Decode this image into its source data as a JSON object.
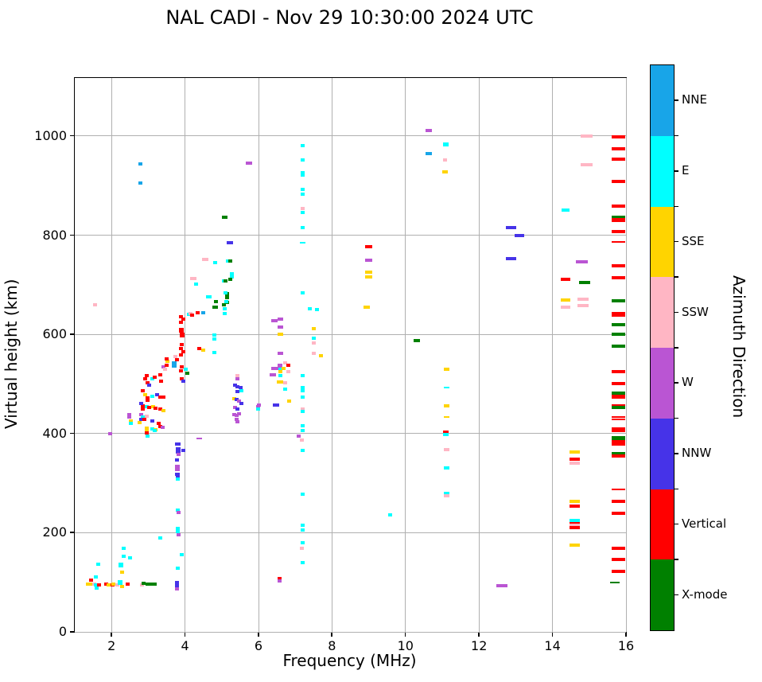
{
  "title": "NAL CADI - Nov 29 10:30:00 2024 UTC",
  "chart_data": {
    "type": "scatter",
    "title": "NAL CADI - Nov 29 10:30:00 2024 UTC",
    "xlabel": "Frequency (MHz)",
    "ylabel": "Virtual height (km)",
    "xlim": [
      1,
      16
    ],
    "ylim": [
      0,
      1117
    ],
    "xticks": [
      2,
      4,
      6,
      8,
      10,
      12,
      14,
      16
    ],
    "yticks": [
      0,
      200,
      400,
      600,
      800,
      1000
    ],
    "grid": true,
    "grid_color": "#b0b0b0",
    "legend_position": "right-colorbar",
    "colorbar": {
      "label": "Azimuth Direction",
      "categories": [
        {
          "name": "NNE",
          "color": "#18a5e8"
        },
        {
          "name": "E",
          "color": "#00ffff"
        },
        {
          "name": "SSE",
          "color": "#ffd400"
        },
        {
          "name": "SSW",
          "color": "#ffb6c4"
        },
        {
          "name": "W",
          "color": "#ba55d3"
        },
        {
          "name": "NNW",
          "color": "#4633e8"
        },
        {
          "name": "Vertical",
          "color": "#ff0000"
        },
        {
          "name": "X-mode",
          "color": "#008000"
        }
      ]
    },
    "point_format": "[freq_MHz, height_km, category_index, width_px?, height_px?]",
    "points": [
      [
        1.42,
        96,
        2,
        10
      ],
      [
        1.45,
        104,
        6
      ],
      [
        1.53,
        96,
        3
      ],
      [
        1.58,
        111,
        1
      ],
      [
        1.58,
        94,
        1
      ],
      [
        1.6,
        88,
        1
      ],
      [
        1.64,
        137,
        1
      ],
      [
        1.65,
        95,
        6
      ],
      [
        1.85,
        96,
        6
      ],
      [
        1.95,
        95,
        2,
        8
      ],
      [
        2.02,
        95,
        6
      ],
      [
        2.05,
        97,
        2
      ],
      [
        2.16,
        94,
        3
      ],
      [
        2.23,
        99,
        1,
        6,
        6
      ],
      [
        2.26,
        135,
        1,
        6,
        6
      ],
      [
        2.28,
        120,
        2
      ],
      [
        2.28,
        91,
        2
      ],
      [
        2.33,
        168,
        1
      ],
      [
        2.33,
        153,
        1
      ],
      [
        2.43,
        96,
        6
      ],
      [
        2.5,
        150,
        1
      ],
      [
        2.83,
        94,
        3
      ],
      [
        2.87,
        98,
        7
      ],
      [
        3.0,
        97,
        7,
        7
      ],
      [
        3.12,
        97,
        7,
        7
      ],
      [
        3.17,
        97,
        7
      ],
      [
        3.8,
        129,
        1
      ],
      [
        3.92,
        155,
        1
      ],
      [
        3.78,
        95,
        5,
        5,
        10
      ],
      [
        3.78,
        87,
        4
      ],
      [
        3.33,
        189,
        1
      ],
      [
        6.57,
        107,
        6
      ],
      [
        6.57,
        103,
        4
      ],
      [
        12.62,
        93,
        4,
        14
      ],
      [
        15.7,
        100,
        7,
        12,
        2
      ],
      [
        7.2,
        981,
        1
      ],
      [
        7.2,
        951,
        1
      ],
      [
        7.2,
        926,
        1
      ],
      [
        7.2,
        922,
        1
      ],
      [
        7.2,
        893,
        1
      ],
      [
        7.2,
        883,
        1
      ],
      [
        7.2,
        853,
        3
      ],
      [
        7.2,
        846,
        1
      ],
      [
        7.2,
        815,
        1
      ],
      [
        7.21,
        785,
        1,
        7,
        2
      ],
      [
        7.2,
        683,
        1
      ],
      [
        7.4,
        651,
        1
      ],
      [
        7.6,
        650,
        1
      ],
      [
        7.5,
        612,
        2
      ],
      [
        7.5,
        592,
        1
      ],
      [
        7.5,
        582,
        3
      ],
      [
        7.5,
        562,
        3
      ],
      [
        7.7,
        557,
        2
      ],
      [
        7.21,
        516,
        1
      ],
      [
        7.21,
        489,
        1,
        5,
        8
      ],
      [
        7.21,
        474,
        1
      ],
      [
        7.21,
        450,
        3
      ],
      [
        7.21,
        445,
        1
      ],
      [
        7.21,
        415,
        1
      ],
      [
        7.21,
        406,
        1
      ],
      [
        7.09,
        394,
        4
      ],
      [
        7.19,
        386,
        3
      ],
      [
        7.21,
        366,
        1
      ],
      [
        7.2,
        278,
        1
      ],
      [
        7.2,
        215,
        1
      ],
      [
        7.2,
        206,
        1
      ],
      [
        7.2,
        179,
        1
      ],
      [
        7.19,
        169,
        3
      ],
      [
        7.2,
        140,
        1
      ],
      [
        5.74,
        946,
        4,
        8
      ],
      [
        2.78,
        943,
        0
      ],
      [
        2.78,
        905,
        0
      ],
      [
        10.64,
        1011,
        4,
        8
      ],
      [
        10.64,
        964,
        0,
        8
      ],
      [
        11.09,
        983,
        1,
        7,
        5
      ],
      [
        11.08,
        952,
        3
      ],
      [
        11.08,
        927,
        2,
        7
      ],
      [
        14.92,
        1000,
        3,
        15
      ],
      [
        14.92,
        942,
        3,
        15
      ],
      [
        14.35,
        850,
        1,
        10
      ],
      [
        5.08,
        836,
        7,
        7
      ],
      [
        5.23,
        785,
        5,
        8
      ],
      [
        4.56,
        751,
        3,
        8
      ],
      [
        4.82,
        745,
        1
      ],
      [
        5.17,
        748,
        1
      ],
      [
        5.23,
        748,
        7
      ],
      [
        4.22,
        713,
        3,
        8
      ],
      [
        4.3,
        701,
        1
      ],
      [
        5.27,
        719,
        1,
        5,
        8
      ],
      [
        5.05,
        708,
        1
      ],
      [
        5.1,
        707,
        7
      ],
      [
        5.23,
        711,
        7
      ],
      [
        4.64,
        675,
        1,
        7
      ],
      [
        4.85,
        666,
        7
      ],
      [
        5.15,
        678,
        7,
        5,
        9
      ],
      [
        5.1,
        683,
        1
      ],
      [
        5.15,
        665,
        7
      ],
      [
        5.13,
        666,
        1
      ],
      [
        5.08,
        652,
        1
      ],
      [
        4.83,
        655,
        7,
        7
      ],
      [
        5.05,
        659,
        7
      ],
      [
        5.08,
        642,
        1
      ],
      [
        3.9,
        636,
        6
      ],
      [
        3.95,
        630,
        6
      ],
      [
        3.9,
        624,
        6
      ],
      [
        3.9,
        608,
        6,
        6,
        6
      ],
      [
        3.92,
        598,
        6,
        6,
        6
      ],
      [
        4.1,
        640,
        1
      ],
      [
        4.15,
        642,
        3
      ],
      [
        4.2,
        638,
        6
      ],
      [
        4.35,
        644,
        6
      ],
      [
        4.49,
        643,
        0
      ],
      [
        3.92,
        580,
        6
      ],
      [
        3.9,
        572,
        6
      ],
      [
        3.95,
        565,
        6
      ],
      [
        3.9,
        558,
        6
      ],
      [
        4.39,
        572,
        6
      ],
      [
        4.49,
        568,
        2
      ],
      [
        4.79,
        599,
        1
      ],
      [
        4.8,
        590,
        1
      ],
      [
        4.79,
        564,
        1
      ],
      [
        3.74,
        556,
        3
      ],
      [
        3.78,
        549,
        6
      ],
      [
        3.7,
        540,
        0,
        6,
        8
      ],
      [
        3.92,
        535,
        6
      ],
      [
        3.9,
        526,
        6
      ],
      [
        4.03,
        530,
        1
      ],
      [
        4.07,
        522,
        7
      ],
      [
        3.92,
        510,
        6
      ],
      [
        3.95,
        505,
        5
      ],
      [
        2.95,
        516,
        6
      ],
      [
        2.92,
        510,
        6
      ],
      [
        3.1,
        510,
        1
      ],
      [
        3.17,
        513,
        6
      ],
      [
        3.32,
        518,
        6
      ],
      [
        3.35,
        505,
        6
      ],
      [
        3.42,
        534,
        4
      ],
      [
        3.45,
        530,
        3
      ],
      [
        3.49,
        538,
        6
      ],
      [
        3.53,
        546,
        2
      ],
      [
        3.49,
        551,
        6
      ],
      [
        2.99,
        502,
        6
      ],
      [
        3.03,
        498,
        5
      ],
      [
        2.84,
        486,
        6
      ],
      [
        2.92,
        478,
        2
      ],
      [
        2.99,
        472,
        6
      ],
      [
        2.99,
        467,
        6
      ],
      [
        3.1,
        475,
        1
      ],
      [
        3.24,
        478,
        5
      ],
      [
        3.32,
        473,
        6
      ],
      [
        3.42,
        473,
        6
      ],
      [
        2.84,
        455,
        6
      ],
      [
        2.84,
        450,
        6
      ],
      [
        2.81,
        460,
        5
      ],
      [
        2.95,
        454,
        1
      ],
      [
        3.03,
        452,
        6
      ],
      [
        3.14,
        454,
        2
      ],
      [
        3.2,
        451,
        6
      ],
      [
        3.32,
        449,
        6
      ],
      [
        3.42,
        446,
        2
      ],
      [
        2.81,
        438,
        4
      ],
      [
        2.84,
        433,
        1
      ],
      [
        2.81,
        428,
        5
      ],
      [
        2.77,
        422,
        2
      ],
      [
        2.9,
        429,
        6
      ],
      [
        2.95,
        435,
        3
      ],
      [
        3.1,
        426,
        5
      ],
      [
        2.49,
        438,
        4
      ],
      [
        2.49,
        433,
        4
      ],
      [
        2.52,
        426,
        2
      ],
      [
        2.52,
        420,
        1
      ],
      [
        2.95,
        411,
        2
      ],
      [
        2.95,
        406,
        2
      ],
      [
        3.1,
        409,
        1
      ],
      [
        3.2,
        408,
        2
      ],
      [
        3.17,
        406,
        1
      ],
      [
        3.28,
        420,
        6
      ],
      [
        3.32,
        414,
        6
      ],
      [
        3.39,
        412,
        4
      ],
      [
        2.95,
        401,
        6
      ],
      [
        2.99,
        395,
        1
      ],
      [
        1.96,
        399,
        4
      ],
      [
        1.55,
        659,
        3
      ],
      [
        5.43,
        517,
        3
      ],
      [
        5.43,
        511,
        4
      ],
      [
        5.36,
        497,
        5
      ],
      [
        5.43,
        494,
        5
      ],
      [
        5.51,
        492,
        5
      ],
      [
        5.54,
        486,
        1
      ],
      [
        5.43,
        484,
        5
      ],
      [
        5.33,
        470,
        2
      ],
      [
        5.4,
        468,
        5
      ],
      [
        5.47,
        466,
        4
      ],
      [
        5.54,
        460,
        5
      ],
      [
        5.36,
        452,
        4
      ],
      [
        5.43,
        450,
        5
      ],
      [
        5.33,
        438,
        4
      ],
      [
        5.4,
        437,
        4
      ],
      [
        5.47,
        439,
        4
      ],
      [
        5.4,
        428,
        4
      ],
      [
        5.42,
        424,
        4
      ],
      [
        6.02,
        457,
        4
      ],
      [
        5.98,
        454,
        4
      ],
      [
        5.99,
        450,
        1
      ],
      [
        4.39,
        390,
        4,
        7,
        2
      ],
      [
        3.81,
        379,
        5,
        7
      ],
      [
        3.82,
        366,
        5,
        6,
        8
      ],
      [
        3.95,
        366,
        5
      ],
      [
        3.82,
        358,
        4
      ],
      [
        3.78,
        346,
        5
      ],
      [
        3.8,
        334,
        4,
        6
      ],
      [
        3.8,
        328,
        4,
        6
      ],
      [
        3.8,
        318,
        5,
        6
      ],
      [
        3.8,
        312,
        5
      ],
      [
        3.81,
        308,
        1
      ],
      [
        3.81,
        246,
        1
      ],
      [
        3.82,
        240,
        4
      ],
      [
        3.81,
        205,
        1,
        5,
        8
      ],
      [
        3.82,
        196,
        4
      ],
      [
        6.44,
        627,
        4,
        8
      ],
      [
        6.6,
        630,
        4,
        7
      ],
      [
        6.6,
        615,
        4,
        7
      ],
      [
        6.59,
        600,
        2,
        7
      ],
      [
        6.6,
        561,
        4,
        7
      ],
      [
        6.73,
        543,
        3
      ],
      [
        6.82,
        537,
        6
      ],
      [
        6.59,
        534,
        4,
        6,
        8
      ],
      [
        6.44,
        532,
        4,
        8
      ],
      [
        6.59,
        530,
        1
      ],
      [
        6.69,
        532,
        2
      ],
      [
        6.82,
        525,
        3
      ],
      [
        6.4,
        519,
        4,
        8
      ],
      [
        6.6,
        524,
        2
      ],
      [
        6.59,
        516,
        1
      ],
      [
        6.59,
        504,
        2,
        8
      ],
      [
        6.73,
        502,
        3
      ],
      [
        6.73,
        490,
        1
      ],
      [
        6.83,
        466,
        2
      ],
      [
        6.47,
        457,
        5,
        8
      ],
      [
        9.0,
        777,
        6,
        9
      ],
      [
        9.0,
        749,
        4,
        9
      ],
      [
        9.0,
        726,
        2,
        9
      ],
      [
        9.0,
        716,
        2,
        9
      ],
      [
        8.95,
        655,
        2,
        8
      ],
      [
        10.3,
        588,
        7,
        8
      ],
      [
        11.12,
        529,
        2,
        7
      ],
      [
        11.12,
        493,
        1,
        7,
        2
      ],
      [
        11.12,
        456,
        2,
        7
      ],
      [
        11.12,
        433,
        2,
        7,
        2
      ],
      [
        11.1,
        403,
        6,
        7
      ],
      [
        11.1,
        398,
        1,
        7
      ],
      [
        11.12,
        368,
        3,
        7
      ],
      [
        11.12,
        331,
        1,
        7
      ],
      [
        11.12,
        280,
        1,
        7
      ],
      [
        11.12,
        275,
        3,
        7
      ],
      [
        9.58,
        236,
        1
      ],
      [
        12.88,
        815,
        5,
        13
      ],
      [
        13.1,
        800,
        5,
        12
      ],
      [
        12.88,
        753,
        5,
        13
      ],
      [
        14.8,
        746,
        4,
        15
      ],
      [
        14.35,
        711,
        6,
        12
      ],
      [
        14.87,
        704,
        7,
        14
      ],
      [
        14.35,
        669,
        2,
        12
      ],
      [
        14.83,
        671,
        3,
        14
      ],
      [
        14.35,
        655,
        3,
        12
      ],
      [
        14.83,
        658,
        3,
        14
      ],
      [
        14.6,
        362,
        2,
        13
      ],
      [
        14.6,
        348,
        6,
        13
      ],
      [
        14.6,
        341,
        3,
        13
      ],
      [
        14.6,
        263,
        2,
        13
      ],
      [
        14.6,
        254,
        6,
        13
      ],
      [
        14.6,
        224,
        1,
        13
      ],
      [
        14.6,
        219,
        6,
        13
      ],
      [
        14.6,
        215,
        3,
        13
      ],
      [
        14.6,
        211,
        6,
        13
      ],
      [
        14.6,
        175,
        2,
        13
      ],
      [
        15.8,
        999,
        6,
        17
      ],
      [
        15.8,
        974,
        6,
        17
      ],
      [
        15.8,
        953,
        6,
        17
      ],
      [
        15.8,
        909,
        6,
        17
      ],
      [
        15.8,
        858,
        6,
        17
      ],
      [
        15.8,
        836,
        7,
        17,
        5
      ],
      [
        15.8,
        831,
        6,
        17,
        5
      ],
      [
        15.8,
        807,
        6,
        17
      ],
      [
        15.8,
        786,
        6,
        17,
        2
      ],
      [
        15.8,
        739,
        6,
        17
      ],
      [
        15.8,
        714,
        6,
        17
      ],
      [
        15.8,
        668,
        7,
        17
      ],
      [
        15.8,
        641,
        6,
        17,
        6
      ],
      [
        15.8,
        620,
        7,
        17
      ],
      [
        15.8,
        600,
        7,
        17
      ],
      [
        15.8,
        576,
        7,
        17
      ],
      [
        15.8,
        525,
        6,
        17
      ],
      [
        15.8,
        501,
        6,
        17
      ],
      [
        15.8,
        482,
        7,
        17
      ],
      [
        15.8,
        474,
        6,
        17,
        5
      ],
      [
        15.8,
        456,
        6,
        17
      ],
      [
        15.8,
        452,
        7,
        17
      ],
      [
        15.8,
        434,
        6,
        17,
        2
      ],
      [
        15.8,
        428,
        6,
        17,
        2
      ],
      [
        15.8,
        407,
        6,
        17,
        6
      ],
      [
        15.8,
        390,
        7,
        17,
        5
      ],
      [
        15.8,
        381,
        6,
        17,
        7
      ],
      [
        15.8,
        359,
        7,
        17
      ],
      [
        15.8,
        355,
        6,
        17
      ],
      [
        15.8,
        287,
        6,
        17,
        2
      ],
      [
        15.8,
        264,
        6,
        17
      ],
      [
        15.8,
        239,
        6,
        17
      ],
      [
        15.8,
        168,
        6,
        17
      ],
      [
        15.8,
        146,
        6,
        17
      ],
      [
        15.8,
        122,
        6,
        17
      ]
    ]
  }
}
